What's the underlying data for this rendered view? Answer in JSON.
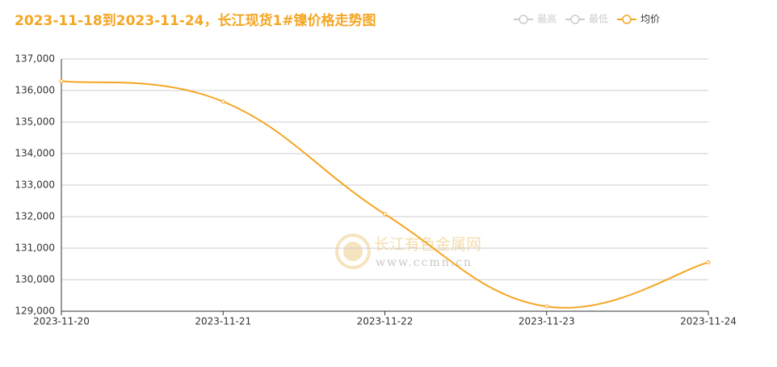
{
  "chart_data": {
    "type": "line",
    "title": "2023-11-18到2023-11-24，长江现货1#镍价格走势图",
    "categories": [
      "2023-11-20",
      "2023-11-21",
      "2023-11-22",
      "2023-11-23",
      "2023-11-24"
    ],
    "series": [
      {
        "name": "最高",
        "color": "#cccccc",
        "hidden": true
      },
      {
        "name": "最低",
        "color": "#cccccc",
        "hidden": true
      },
      {
        "name": "均价",
        "color": "#f5a623",
        "values": [
          136300,
          135650,
          132080,
          129150,
          130550
        ]
      }
    ],
    "ylim": [
      129000,
      137000
    ],
    "yticks": [
      {
        "value": 129000,
        "label": "129,000"
      },
      {
        "value": 130000,
        "label": "130,000"
      },
      {
        "value": 131000,
        "label": "131,000"
      },
      {
        "value": 132000,
        "label": "132,000"
      },
      {
        "value": 133000,
        "label": "133,000"
      },
      {
        "value": 134000,
        "label": "134,000"
      },
      {
        "value": 135000,
        "label": "135,000"
      },
      {
        "value": 136000,
        "label": "136,000"
      },
      {
        "value": 137000,
        "label": "137,000"
      }
    ],
    "grid": true,
    "annotations": [
      "长江有色金属网",
      "www.ccmn.cn"
    ]
  }
}
